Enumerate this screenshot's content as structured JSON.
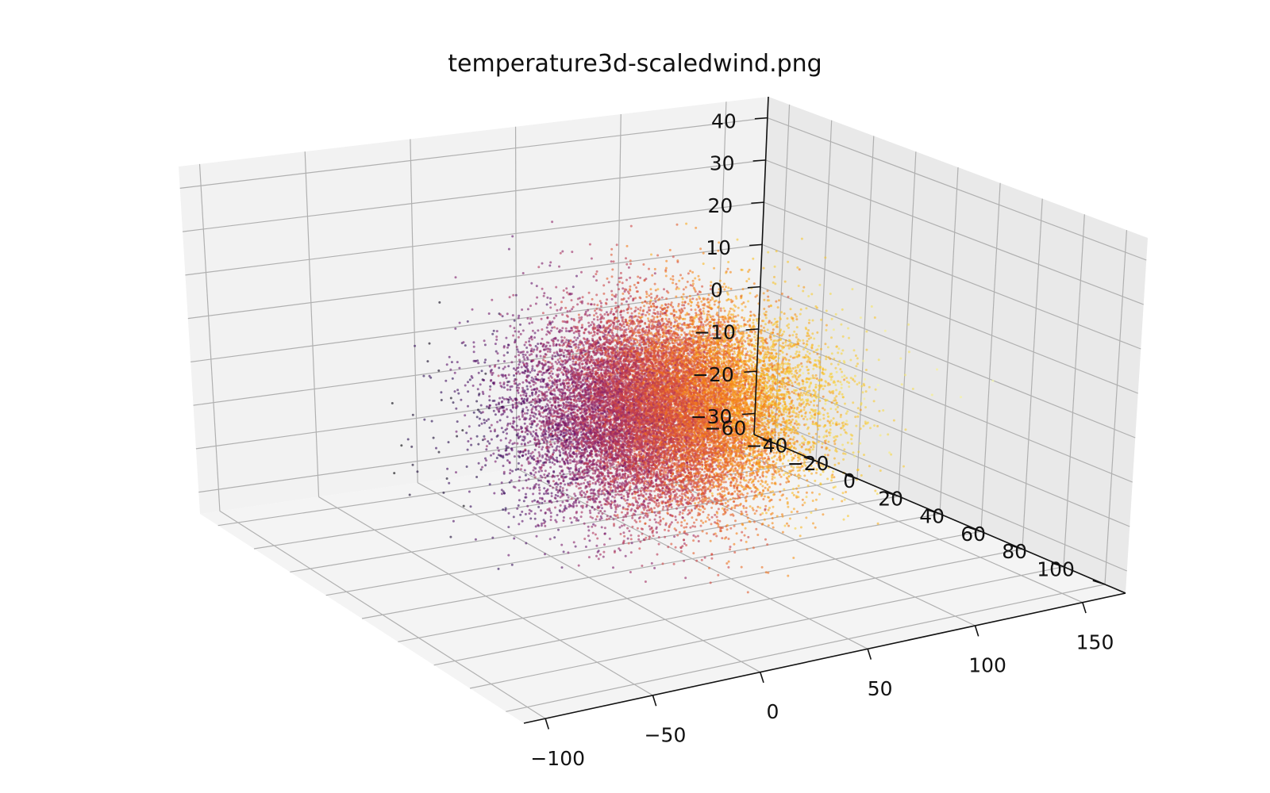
{
  "chart_data": {
    "type": "scatter",
    "projection": "3d",
    "title": "temperature3d-scaledwind.png",
    "colormap": "inferno",
    "grid": true,
    "x_axis": {
      "ticks": [
        150,
        100,
        50,
        0,
        -50,
        -100
      ],
      "labels": [
        "150",
        "100",
        "50",
        "0",
        "−50",
        "−100"
      ],
      "lim": [
        -110,
        170
      ]
    },
    "y_axis": {
      "ticks": [
        -60,
        -40,
        -20,
        0,
        20,
        40,
        60,
        80,
        100
      ],
      "labels": [
        "−60",
        "−40",
        "−20",
        "0",
        "20",
        "40",
        "60",
        "80",
        "100"
      ],
      "lim": [
        -70,
        110
      ]
    },
    "z_axis": {
      "ticks": [
        -30,
        -20,
        -10,
        0,
        10,
        20,
        30,
        40
      ],
      "labels": [
        "−30",
        "−20",
        "−10",
        "0",
        "10",
        "20",
        "30",
        "40"
      ],
      "lim": [
        -35,
        45
      ]
    },
    "point_cloud": {
      "count": 20000,
      "center": [
        35,
        20,
        -2
      ],
      "spread": [
        30,
        17,
        10
      ],
      "color_by": "x",
      "color_range": [
        -50,
        120
      ]
    }
  }
}
